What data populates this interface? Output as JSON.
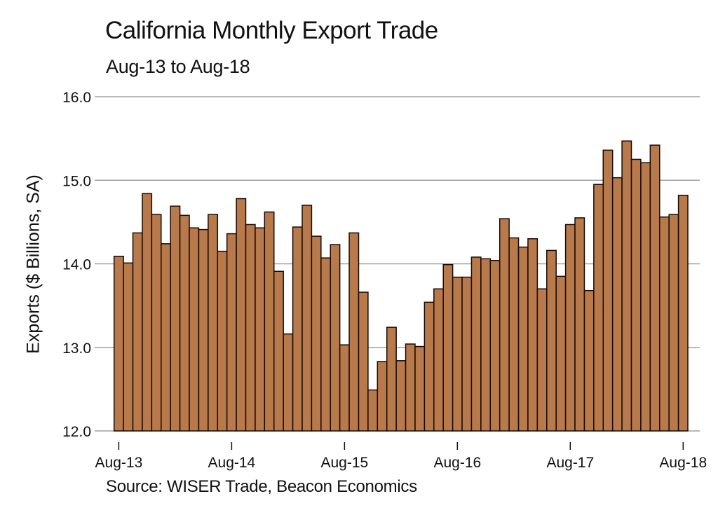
{
  "chart_data": {
    "type": "bar",
    "title": "California Monthly Export Trade",
    "subtitle": "Aug-13 to Aug-18",
    "xlabel": "",
    "ylabel": "Exports ($ Billions, SA)",
    "ylim": [
      12.0,
      16.0
    ],
    "yticks": [
      "12.0",
      "13.0",
      "14.0",
      "15.0",
      "16.0"
    ],
    "xticks": [
      {
        "label": "Aug-13",
        "index": 0
      },
      {
        "label": "Aug-14",
        "index": 12
      },
      {
        "label": "Aug-15",
        "index": 24
      },
      {
        "label": "Aug-16",
        "index": 36
      },
      {
        "label": "Aug-17",
        "index": 48
      },
      {
        "label": "Aug-18",
        "index": 60
      }
    ],
    "grid": true,
    "legend": null,
    "source": "Source: WISER Trade, Beacon Economics",
    "bar_color": "#b87a4b",
    "bar_edge_color": "#1a0a05",
    "grid_color": "#a0a0a0",
    "categories": [
      "Aug-13",
      "Sep-13",
      "Oct-13",
      "Nov-13",
      "Dec-13",
      "Jan-14",
      "Feb-14",
      "Mar-14",
      "Apr-14",
      "May-14",
      "Jun-14",
      "Jul-14",
      "Aug-14",
      "Sep-14",
      "Oct-14",
      "Nov-14",
      "Dec-14",
      "Jan-15",
      "Feb-15",
      "Mar-15",
      "Apr-15",
      "May-15",
      "Jun-15",
      "Jul-15",
      "Aug-15",
      "Sep-15",
      "Oct-15",
      "Nov-15",
      "Dec-15",
      "Jan-16",
      "Feb-16",
      "Mar-16",
      "Apr-16",
      "May-16",
      "Jun-16",
      "Jul-16",
      "Aug-16",
      "Sep-16",
      "Oct-16",
      "Nov-16",
      "Dec-16",
      "Jan-17",
      "Feb-17",
      "Mar-17",
      "Apr-17",
      "May-17",
      "Jun-17",
      "Jul-17",
      "Aug-17",
      "Sep-17",
      "Oct-17",
      "Nov-17",
      "Dec-17",
      "Jan-18",
      "Feb-18",
      "Mar-18",
      "Apr-18",
      "May-18",
      "Jun-18",
      "Jul-18",
      "Aug-18"
    ],
    "values": [
      14.09,
      14.01,
      14.37,
      14.84,
      14.59,
      14.24,
      14.69,
      14.58,
      14.43,
      14.41,
      14.59,
      14.15,
      14.36,
      14.78,
      14.47,
      14.43,
      14.62,
      13.91,
      13.16,
      14.44,
      14.7,
      14.33,
      14.07,
      14.23,
      13.03,
      14.37,
      13.66,
      12.49,
      12.83,
      13.24,
      12.84,
      13.04,
      13.01,
      13.54,
      13.7,
      13.99,
      13.84,
      13.84,
      14.08,
      14.06,
      14.04,
      14.54,
      14.31,
      14.2,
      14.3,
      13.7,
      14.16,
      13.85,
      14.47,
      14.55,
      13.68,
      14.95,
      15.36,
      15.03,
      15.47,
      15.25,
      15.21,
      15.42,
      14.56,
      14.59,
      14.82
    ]
  }
}
